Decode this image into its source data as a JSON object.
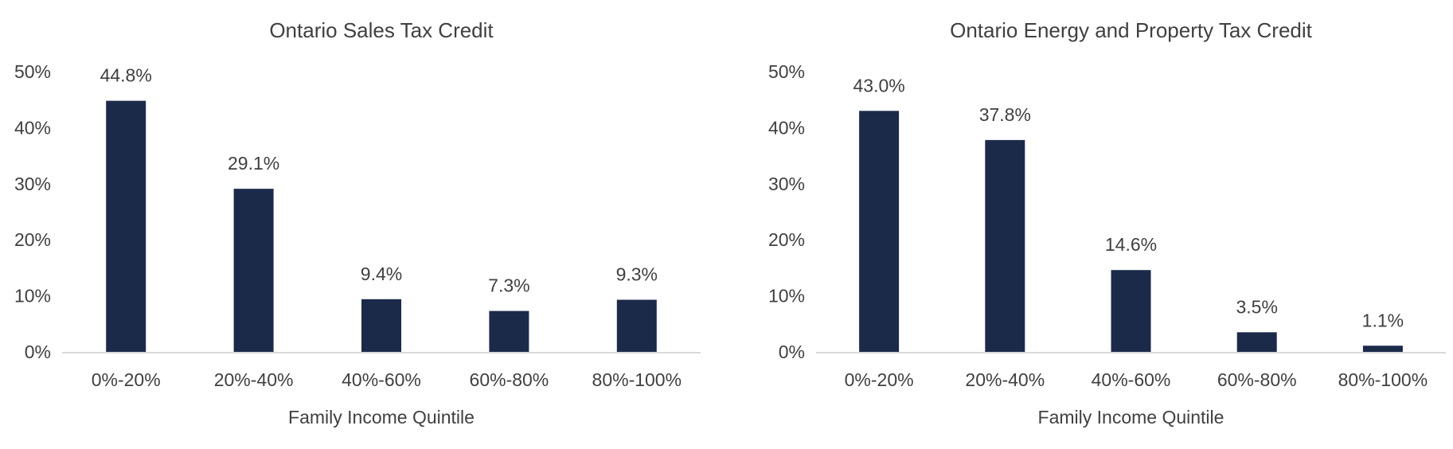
{
  "chart_data": [
    {
      "type": "bar",
      "title": "Ontario Sales Tax Credit",
      "xlabel": "Family Income Quintile",
      "ylabel": "",
      "categories": [
        "0%-20%",
        "20%-40%",
        "40%-60%",
        "60%-80%",
        "80%-100%"
      ],
      "values": [
        44.8,
        29.1,
        9.4,
        7.3,
        9.3
      ],
      "value_labels": [
        "44.8%",
        "29.1%",
        "9.4%",
        "7.3%",
        "9.3%"
      ],
      "ylim": [
        0,
        50
      ],
      "yticks": [
        0,
        10,
        20,
        30,
        40,
        50
      ],
      "ytick_labels": [
        "0%",
        "10%",
        "20%",
        "30%",
        "40%",
        "50%"
      ],
      "grid": false,
      "legend": "none"
    },
    {
      "type": "bar",
      "title": "Ontario Energy and Property Tax Credit",
      "xlabel": "Family Income Quintile",
      "ylabel": "",
      "categories": [
        "0%-20%",
        "20%-40%",
        "40%-60%",
        "60%-80%",
        "80%-100%"
      ],
      "values": [
        43.0,
        37.8,
        14.6,
        3.5,
        1.1
      ],
      "value_labels": [
        "43.0%",
        "37.8%",
        "14.6%",
        "3.5%",
        "1.1%"
      ],
      "ylim": [
        0,
        50
      ],
      "yticks": [
        0,
        10,
        20,
        30,
        40,
        50
      ],
      "ytick_labels": [
        "0%",
        "10%",
        "20%",
        "30%",
        "40%",
        "50%"
      ],
      "grid": false,
      "legend": "none"
    }
  ],
  "colors": {
    "bar": "#1c2a4a",
    "text": "#404040",
    "axis": "#d9d9d9"
  }
}
